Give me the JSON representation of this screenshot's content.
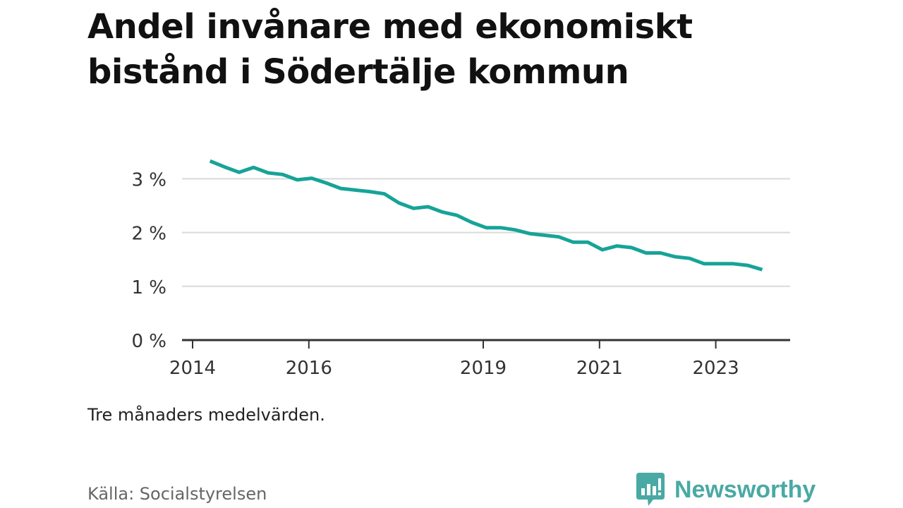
{
  "title": "Andel invånare med ekonomiskt bistånd i Södertälje kommun",
  "note": "Tre månaders medelvärden.",
  "source": "Källa: Socialstyrelsen",
  "brand": {
    "name": "Newsworthy",
    "icon": "newsworthy-logo-icon",
    "color": "#4aa9a4"
  },
  "chart_data": {
    "type": "line",
    "title": "Andel invånare med ekonomiskt bistånd i Södertälje kommun",
    "xlabel": "",
    "ylabel": "",
    "x_ticks": [
      2014,
      2016,
      2019,
      2021,
      2023
    ],
    "x_range": [
      2014.0,
      2024.35
    ],
    "y_ticks": [
      0,
      1,
      2,
      3
    ],
    "y_tick_labels": [
      "0 %",
      "1 %",
      "2 %",
      "3 %"
    ],
    "ylim": [
      0,
      3.7
    ],
    "grid": true,
    "legend": "none",
    "line_color": "#17a398",
    "series": [
      {
        "x": [
          2014.3,
          2014.55,
          2014.8,
          2015.05,
          2015.3,
          2015.55,
          2015.8,
          2016.05,
          2016.3,
          2016.55,
          2016.8,
          2017.05,
          2017.3,
          2017.55,
          2017.8,
          2018.05,
          2018.3,
          2018.55,
          2018.8,
          2019.05,
          2019.3,
          2019.55,
          2019.8,
          2020.05,
          2020.3,
          2020.55,
          2020.8,
          2021.05,
          2021.3,
          2021.55,
          2021.8,
          2022.05,
          2022.3,
          2022.55,
          2022.8,
          2023.05,
          2023.3,
          2023.55,
          2023.8
        ],
        "values": [
          3.33,
          3.22,
          3.12,
          3.21,
          3.11,
          3.08,
          2.98,
          3.01,
          2.92,
          2.82,
          2.79,
          2.76,
          2.72,
          2.55,
          2.45,
          2.48,
          2.38,
          2.32,
          2.19,
          2.09,
          2.09,
          2.05,
          1.98,
          1.95,
          1.92,
          1.82,
          1.82,
          1.68,
          1.75,
          1.72,
          1.62,
          1.62,
          1.55,
          1.52,
          1.42,
          1.42,
          1.42,
          1.39,
          1.31
        ]
      }
    ]
  }
}
